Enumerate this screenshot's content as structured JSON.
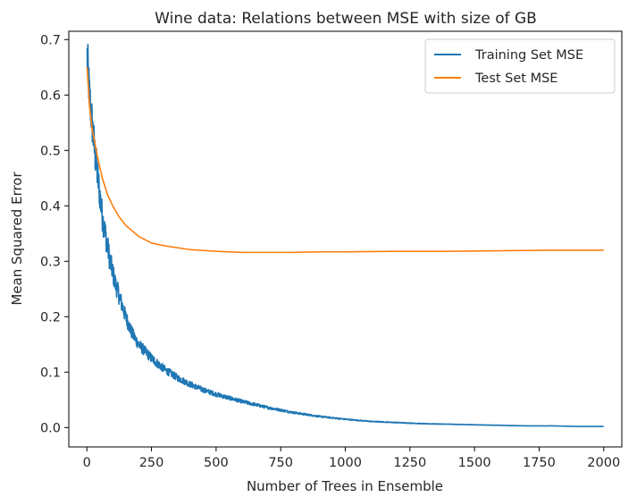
{
  "chart_data": {
    "type": "line",
    "title": "Wine data: Relations between MSE with size of GB",
    "xlabel": "Number of Trees in Ensemble",
    "ylabel": "Mean Squared Error",
    "xlim": [
      -70,
      2070
    ],
    "ylim": [
      -0.035,
      0.715
    ],
    "xticks": [
      0,
      250,
      500,
      750,
      1000,
      1250,
      1500,
      1750,
      2000
    ],
    "xtick_labels": [
      "0",
      "250",
      "500",
      "750",
      "1000",
      "1250",
      "1500",
      "1750",
      "2000"
    ],
    "yticks": [
      0.0,
      0.1,
      0.2,
      0.3,
      0.4,
      0.5,
      0.6,
      0.7
    ],
    "ytick_labels": [
      "0.0",
      "0.1",
      "0.2",
      "0.3",
      "0.4",
      "0.5",
      "0.6",
      "0.7"
    ],
    "grid": false,
    "legend_position": "top-right",
    "series": [
      {
        "name": "Training Set MSE",
        "color": "#1f77b4",
        "noisy": true,
        "x": [
          1,
          10,
          20,
          30,
          40,
          50,
          60,
          75,
          90,
          110,
          130,
          150,
          175,
          200,
          250,
          300,
          350,
          400,
          450,
          500,
          600,
          700,
          800,
          900,
          1000,
          1100,
          1200,
          1300,
          1400,
          1500,
          1600,
          1700,
          1800,
          1900,
          2000
        ],
        "values": [
          0.67,
          0.6,
          0.55,
          0.5,
          0.46,
          0.42,
          0.38,
          0.34,
          0.3,
          0.26,
          0.23,
          0.2,
          0.17,
          0.15,
          0.125,
          0.105,
          0.09,
          0.078,
          0.068,
          0.06,
          0.047,
          0.036,
          0.027,
          0.02,
          0.015,
          0.011,
          0.009,
          0.007,
          0.006,
          0.005,
          0.004,
          0.003,
          0.003,
          0.002,
          0.002
        ]
      },
      {
        "name": "Test Set MSE",
        "color": "#ff7f0e",
        "noisy": false,
        "x": [
          1,
          10,
          20,
          40,
          60,
          80,
          100,
          125,
          150,
          200,
          250,
          300,
          400,
          500,
          600,
          700,
          800,
          900,
          1000,
          1200,
          1400,
          1600,
          1800,
          2000
        ],
        "values": [
          0.65,
          0.58,
          0.54,
          0.49,
          0.45,
          0.42,
          0.4,
          0.38,
          0.365,
          0.345,
          0.333,
          0.328,
          0.321,
          0.318,
          0.316,
          0.316,
          0.316,
          0.317,
          0.317,
          0.318,
          0.318,
          0.319,
          0.32,
          0.32
        ]
      }
    ]
  }
}
